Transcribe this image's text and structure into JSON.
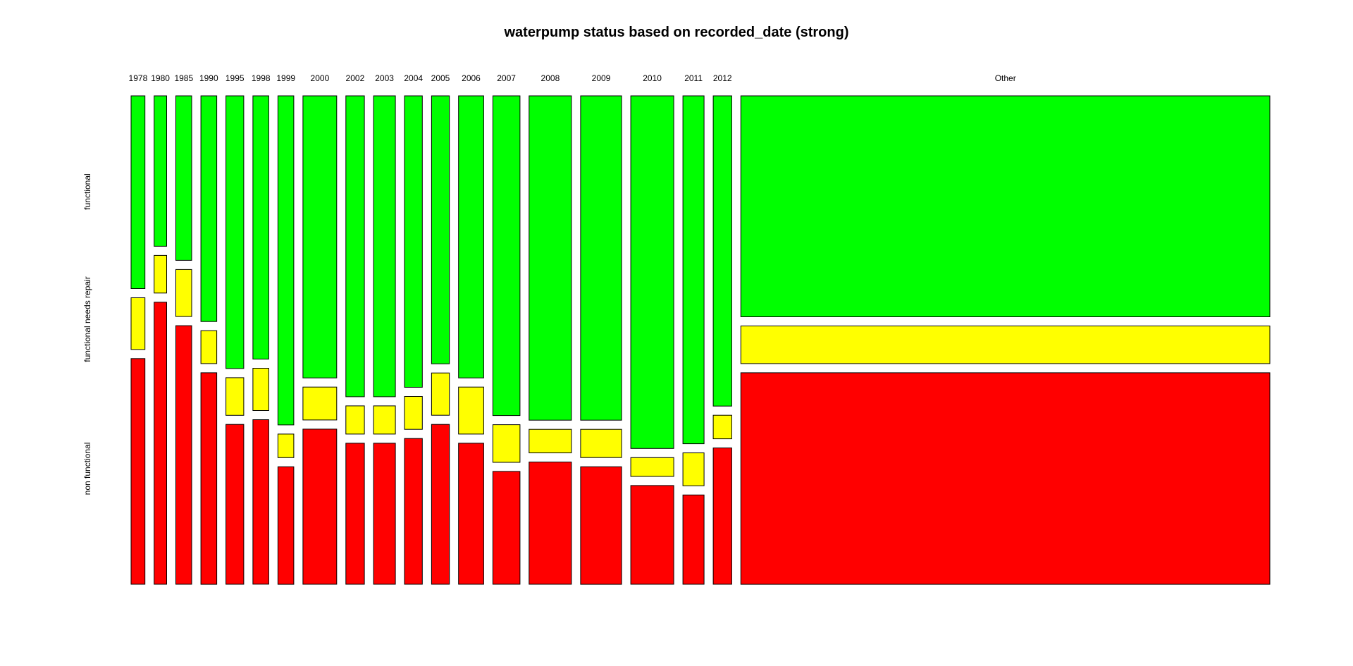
{
  "chart_data": {
    "type": "mosaic",
    "title": "waterpump status based on recorded_date (strong)",
    "status_levels": [
      "functional",
      "functional needs repair",
      "non functional"
    ],
    "colors": {
      "functional": "#00ff00",
      "functional needs repair": "#ffff00",
      "non functional": "#ff0000"
    },
    "categories": [
      "1978",
      "1980",
      "1985",
      "1990",
      "1995",
      "1998",
      "1999",
      "2000",
      "2002",
      "2003",
      "2004",
      "2005",
      "2006",
      "2007",
      "2008",
      "2009",
      "2010",
      "2011",
      "2012",
      "Other"
    ],
    "relative_widths": [
      0.42,
      0.38,
      0.48,
      0.48,
      0.54,
      0.48,
      0.48,
      1.02,
      0.56,
      0.66,
      0.54,
      0.54,
      0.76,
      0.82,
      1.28,
      1.24,
      1.3,
      0.64,
      0.56,
      16.0
    ],
    "proportions": [
      [
        0.41,
        0.11,
        0.48
      ],
      [
        0.32,
        0.08,
        0.6
      ],
      [
        0.35,
        0.1,
        0.55
      ],
      [
        0.48,
        0.07,
        0.45
      ],
      [
        0.58,
        0.08,
        0.34
      ],
      [
        0.56,
        0.09,
        0.35
      ],
      [
        0.7,
        0.05,
        0.25
      ],
      [
        0.6,
        0.07,
        0.33
      ],
      [
        0.64,
        0.06,
        0.3
      ],
      [
        0.64,
        0.06,
        0.3
      ],
      [
        0.62,
        0.07,
        0.31
      ],
      [
        0.57,
        0.09,
        0.34
      ],
      [
        0.6,
        0.1,
        0.3
      ],
      [
        0.68,
        0.08,
        0.24
      ],
      [
        0.69,
        0.05,
        0.26
      ],
      [
        0.69,
        0.06,
        0.25
      ],
      [
        0.75,
        0.04,
        0.21
      ],
      [
        0.74,
        0.07,
        0.19
      ],
      [
        0.66,
        0.05,
        0.29
      ],
      [
        0.47,
        0.08,
        0.45
      ]
    ]
  }
}
